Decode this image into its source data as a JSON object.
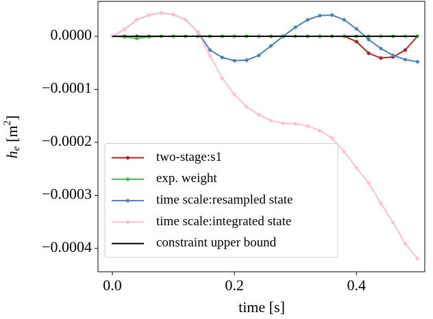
{
  "chart_data": {
    "type": "line",
    "xlabel": "time [s]",
    "ylabel": [
      "h",
      "e",
      "[m",
      "2",
      "]"
    ],
    "x": [
      0,
      0.02,
      0.04,
      0.06,
      0.08,
      0.1,
      0.12,
      0.14,
      0.16,
      0.18,
      0.2,
      0.22,
      0.24,
      0.26,
      0.28,
      0.3,
      0.32,
      0.34,
      0.36,
      0.38,
      0.4,
      0.42,
      0.44,
      0.46,
      0.48,
      0.5
    ],
    "series": [
      {
        "name": "two-stage:s1",
        "color": "#b22222",
        "marker": true,
        "values": [
          0,
          0,
          0,
          0,
          0,
          0,
          0,
          0,
          0,
          0,
          0,
          0,
          0,
          0,
          0,
          0,
          0,
          0,
          0,
          0,
          -1e-05,
          -3.2e-05,
          -4.1e-05,
          -3.9e-05,
          -2.6e-05,
          0
        ]
      },
      {
        "name": "exp. weight",
        "color": "#44bb44",
        "marker": true,
        "values": [
          0,
          -1e-06,
          -4e-06,
          -1e-06,
          0,
          0,
          0,
          0,
          0,
          0,
          0,
          0,
          0,
          0,
          0,
          0,
          0,
          0,
          0,
          0,
          0,
          0,
          0,
          0,
          0,
          0
        ]
      },
      {
        "name": "time scale:resampled state",
        "color": "#4682b4",
        "marker": true,
        "values": [
          0,
          1.3e-05,
          3.1e-05,
          4e-05,
          4.4e-05,
          4.1e-05,
          3.1e-05,
          8e-06,
          -2.6e-05,
          -4e-05,
          -4.6e-05,
          -4.5e-05,
          -3.6e-05,
          -1.8e-05,
          0,
          1.7e-05,
          3.1e-05,
          3.9e-05,
          4e-05,
          3.1e-05,
          1.4e-05,
          -6e-06,
          -2.3e-05,
          -3.6e-05,
          -4.4e-05,
          -4.8e-05
        ]
      },
      {
        "name": "time scale:integrated state",
        "color": "#ffc0cb",
        "marker": true,
        "values": [
          0,
          1.3e-05,
          3.1e-05,
          4e-05,
          4.4e-05,
          4.1e-05,
          3.1e-05,
          8e-06,
          -3.7e-05,
          -7.9e-05,
          -0.00011,
          -0.000133,
          -0.000148,
          -0.000159,
          -0.000164,
          -0.000165,
          -0.000169,
          -0.000178,
          -0.000192,
          -0.000218,
          -0.000248,
          -0.000277,
          -0.000315,
          -0.000351,
          -0.000391,
          -0.000419
        ]
      },
      {
        "name": "constraint upper bound",
        "color": "#000000",
        "marker": false,
        "x": [
          0,
          0.5
        ],
        "values": [
          0,
          0
        ]
      }
    ],
    "xlim": [
      -0.0236,
      0.512
    ],
    "ylim": [
      -0.000444,
      6.58e-05
    ],
    "xticks": [
      {
        "value": 0,
        "label": "0.0"
      },
      {
        "value": 0.2,
        "label": "0.2"
      },
      {
        "value": 0.4,
        "label": "0.4"
      }
    ],
    "yticks": [
      {
        "value": 0,
        "label": "0.0000"
      },
      {
        "value": -0.0001,
        "label": "−0.0001"
      },
      {
        "value": -0.0002,
        "label": "−0.0002"
      },
      {
        "value": -0.0003,
        "label": "−0.0003"
      },
      {
        "value": -0.0004,
        "label": "−0.0004"
      }
    ],
    "legend": "lower left"
  }
}
